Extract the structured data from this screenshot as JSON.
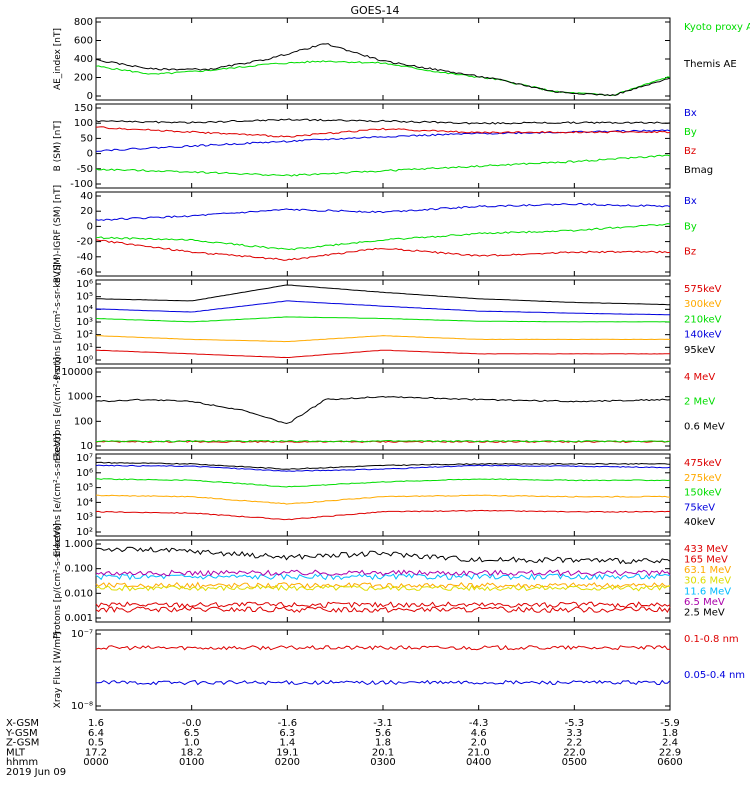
{
  "title": "GOES-14",
  "colors": {
    "black": "#000000",
    "red": "#dd0000",
    "green": "#00dd00",
    "blue": "#0000dd",
    "orange": "#ffaa00",
    "cyan": "#00bbff",
    "purple": "#aa00aa",
    "yellow": "#dddd00"
  },
  "chart_data": [
    {
      "type": "line",
      "ylabel": "AE_index [nT]",
      "yscale": "linear",
      "ylim": [
        0,
        800
      ],
      "yticks": [
        "800",
        "600",
        "400",
        "200",
        "0"
      ],
      "series": [
        {
          "name": "Kyoto proxy AE",
          "color": "green",
          "x": [
            0,
            0.6,
            1.2,
            1.8,
            2.4,
            3.0,
            3.6,
            4.2,
            4.8,
            5.4,
            6.0
          ],
          "y": [
            330,
            250,
            290,
            350,
            380,
            360,
            270,
            200,
            80,
            45,
            230
          ]
        },
        {
          "name": "Themis AE",
          "color": "black",
          "x": [
            0,
            0.6,
            1.2,
            1.8,
            2.4,
            3.0,
            3.6,
            4.2,
            4.8,
            5.4,
            6.0
          ],
          "y": [
            390,
            300,
            300,
            400,
            550,
            380,
            290,
            200,
            80,
            45,
            210
          ]
        }
      ]
    },
    {
      "type": "line",
      "ylabel": "B (SM) [nT]",
      "yscale": "linear",
      "ylim": [
        -120,
        150
      ],
      "yticks": [
        "150",
        "100",
        "50",
        "0",
        "-50",
        "-100"
      ],
      "series": [
        {
          "name": "Bx",
          "color": "blue",
          "x": [
            0,
            1,
            2,
            3,
            4,
            5,
            6
          ],
          "y": [
            0,
            15,
            30,
            45,
            55,
            60,
            65
          ]
        },
        {
          "name": "By",
          "color": "green",
          "x": [
            0,
            1,
            2,
            3,
            4,
            5,
            6
          ],
          "y": [
            -60,
            -68,
            -80,
            -65,
            -50,
            -35,
            -15
          ]
        },
        {
          "name": "Bz",
          "color": "red",
          "x": [
            0,
            1,
            2,
            3,
            4,
            5,
            6
          ],
          "y": [
            75,
            60,
            45,
            70,
            58,
            60,
            60
          ]
        },
        {
          "name": "Bmag",
          "color": "black",
          "x": [
            0,
            1,
            2,
            3,
            4,
            5,
            6
          ],
          "y": [
            95,
            90,
            100,
            95,
            88,
            90,
            90
          ]
        }
      ]
    },
    {
      "type": "line",
      "ylabel": "B (SM)-IGRF (SM) [nT]",
      "yscale": "linear",
      "ylim": [
        -65,
        40
      ],
      "yticks": [
        "40",
        "20",
        "0",
        "-20",
        "-40",
        "-60"
      ],
      "series": [
        {
          "name": "Bx",
          "color": "blue",
          "x": [
            0,
            1,
            2,
            3,
            4,
            5,
            6
          ],
          "y": [
            5,
            10,
            18,
            15,
            22,
            25,
            22
          ]
        },
        {
          "name": "By",
          "color": "green",
          "x": [
            0,
            1,
            2,
            3,
            4,
            5,
            6
          ],
          "y": [
            -17,
            -20,
            -32,
            -20,
            -12,
            -8,
            0
          ]
        },
        {
          "name": "Bz",
          "color": "red",
          "x": [
            0,
            1,
            2,
            3,
            4,
            5,
            6
          ],
          "y": [
            -20,
            -35,
            -45,
            -30,
            -40,
            -35,
            -35
          ]
        }
      ]
    },
    {
      "type": "line",
      "ylabel": "Protons [p/(cm²-s-sr-keV)]",
      "yscale": "log",
      "ylim": [
        0.3,
        2000000
      ],
      "yticks": [
        "10⁶",
        "10⁵",
        "10⁴",
        "10³",
        "10²",
        "10¹",
        "10⁰"
      ],
      "series": [
        {
          "name": "575keV",
          "color": "red",
          "x": [
            0,
            1,
            2,
            3,
            4,
            5,
            6
          ],
          "y": [
            4,
            2,
            1,
            4,
            2,
            2,
            2
          ]
        },
        {
          "name": "300keV",
          "color": "orange",
          "x": [
            0,
            1,
            2,
            3,
            4,
            5,
            6
          ],
          "y": [
            60,
            30,
            20,
            60,
            30,
            30,
            30
          ]
        },
        {
          "name": "210keV",
          "color": "green",
          "x": [
            0,
            1,
            2,
            3,
            4,
            5,
            6
          ],
          "y": [
            1500,
            800,
            2000,
            1500,
            900,
            800,
            800
          ]
        },
        {
          "name": "140keV",
          "color": "blue",
          "x": [
            0,
            1,
            2,
            3,
            4,
            5,
            6
          ],
          "y": [
            9000,
            5000,
            40000,
            15000,
            6000,
            4000,
            3000
          ]
        },
        {
          "name": "95keV",
          "color": "black",
          "x": [
            0,
            1,
            2,
            3,
            4,
            5,
            6
          ],
          "y": [
            60000,
            40000,
            800000,
            200000,
            60000,
            30000,
            20000
          ]
        }
      ]
    },
    {
      "type": "line",
      "ylabel": "Electrons [e/(cm²-s-sr)]",
      "yscale": "log",
      "ylim": [
        10,
        10000
      ],
      "yticks": [
        "10000",
        "1000",
        "100",
        "10"
      ],
      "series": [
        {
          "name": "4 MeV",
          "color": "red",
          "x": [
            0,
            6
          ],
          "y": [
            20,
            20
          ]
        },
        {
          "name": "2 MeV",
          "color": "green",
          "x": [
            0,
            6
          ],
          "y": [
            21,
            21
          ]
        },
        {
          "name": "0.6 MeV",
          "color": "black",
          "x": [
            0,
            0.5,
            1,
            1.5,
            2,
            2.4,
            3,
            4,
            5,
            6
          ],
          "y": [
            600,
            700,
            600,
            300,
            90,
            700,
            900,
            700,
            600,
            700
          ]
        }
      ]
    },
    {
      "type": "line",
      "ylabel": "Electrons [e/(cm²-s-sr-keV)]",
      "yscale": "log",
      "ylim": [
        100,
        10000000
      ],
      "yticks": [
        "10⁷",
        "10⁶",
        "10⁵",
        "10⁴",
        "10³",
        "10²"
      ],
      "series": [
        {
          "name": "475keV",
          "color": "red",
          "x": [
            0,
            1,
            2,
            3,
            4,
            5,
            6
          ],
          "y": [
            3000,
            2500,
            1000,
            3000,
            3500,
            3000,
            3000
          ]
        },
        {
          "name": "275keV",
          "color": "orange",
          "x": [
            0,
            1,
            2,
            3,
            4,
            5,
            6
          ],
          "y": [
            30000,
            25000,
            9000,
            25000,
            30000,
            25000,
            25000
          ]
        },
        {
          "name": "150keV",
          "color": "green",
          "x": [
            0,
            1,
            2,
            3,
            4,
            5,
            6
          ],
          "y": [
            300000,
            250000,
            100000,
            200000,
            300000,
            250000,
            250000
          ]
        },
        {
          "name": "75keV",
          "color": "blue",
          "x": [
            0,
            1,
            2,
            3,
            4,
            5,
            6
          ],
          "y": [
            2000000,
            1800000,
            900000,
            1200000,
            2000000,
            1800000,
            1500000
          ]
        },
        {
          "name": "40keV",
          "color": "black",
          "x": [
            0,
            1,
            2,
            3,
            4,
            5,
            6
          ],
          "y": [
            3000000,
            2500000,
            1200000,
            2000000,
            2500000,
            2500000,
            2500000
          ]
        }
      ]
    },
    {
      "type": "line",
      "ylabel": "Protons [p/(cm²-s-sr-keV)]",
      "yscale": "log",
      "ylim": [
        0.0008,
        5
      ],
      "yticks": [
        "1.000",
        "0.100",
        "0.010",
        "0.001"
      ],
      "series": [
        {
          "name": "433 MeV",
          "color": "red",
          "x": [
            0,
            6
          ],
          "y": [
            0.003,
            0.003
          ]
        },
        {
          "name": "165 MeV",
          "color": "red",
          "x": [
            0,
            6
          ],
          "y": [
            0.005,
            0.005
          ]
        },
        {
          "name": "63.1 MeV",
          "color": "orange",
          "x": [
            0,
            6
          ],
          "y": [
            0.04,
            0.04
          ]
        },
        {
          "name": "30.6 MeV",
          "color": "yellow",
          "x": [
            0,
            6
          ],
          "y": [
            0.03,
            0.03
          ]
        },
        {
          "name": "11.6 MeV",
          "color": "cyan",
          "x": [
            0,
            6
          ],
          "y": [
            0.1,
            0.1
          ]
        },
        {
          "name": "6.5 MeV",
          "color": "purple",
          "x": [
            0,
            6
          ],
          "y": [
            0.15,
            0.15
          ]
        },
        {
          "name": "2.5 MeV",
          "color": "black",
          "x": [
            0,
            1,
            2,
            3,
            4,
            5,
            6
          ],
          "y": [
            2,
            1.5,
            0.8,
            1.2,
            0.6,
            0.6,
            0.5
          ]
        }
      ]
    },
    {
      "type": "line",
      "ylabel": "Xray Flux [W/m²]",
      "yscale": "log",
      "ylim": [
        1e-08,
        1e-07
      ],
      "yticks": [
        "10⁻⁷",
        "10⁻⁸"
      ],
      "series": [
        {
          "name": "0.1-0.8 nm",
          "color": "red",
          "x": [
            0,
            6
          ],
          "y": [
            6e-08,
            6e-08
          ]
        },
        {
          "name": "0.05-0.4 nm",
          "color": "blue",
          "x": [
            0,
            6
          ],
          "y": [
            2.2e-08,
            2.2e-08
          ]
        }
      ]
    }
  ],
  "xaxis": {
    "rows": [
      {
        "label": "X-GSM",
        "values": [
          "1.6",
          "-0.0",
          "-1.6",
          "-3.1",
          "-4.3",
          "-5.3",
          "-5.9"
        ]
      },
      {
        "label": "Y-GSM",
        "values": [
          "6.4",
          "6.5",
          "6.3",
          "5.6",
          "4.6",
          "3.3",
          "1.8"
        ]
      },
      {
        "label": "Z-GSM",
        "values": [
          "0.5",
          "1.0",
          "1.4",
          "1.8",
          "2.0",
          "2.2",
          "2.4"
        ]
      },
      {
        "label": "MLT",
        "values": [
          "17.2",
          "18.2",
          "19.1",
          "20.1",
          "21.0",
          "22.0",
          "22.9"
        ]
      },
      {
        "label": "hhmm",
        "values": [
          "0000",
          "0100",
          "0200",
          "0300",
          "0400",
          "0500",
          "0600"
        ]
      }
    ],
    "date": "2019 Jun 09"
  }
}
